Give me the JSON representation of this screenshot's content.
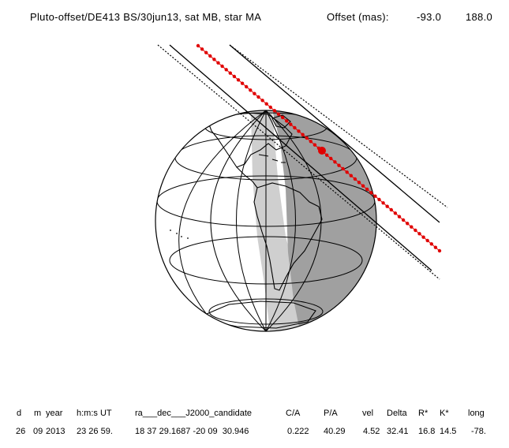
{
  "header": {
    "title": "Pluto-offset/DE413 BS/30jun13, sat MB, star MA",
    "offset_label": "Offset (mas):",
    "offset_x": "-93.0",
    "offset_y": "188.0"
  },
  "table": {
    "headers": [
      "d",
      "m",
      "year",
      "h:m:s UT",
      "ra___dec___J2000_candidate",
      "C/A",
      "P/A",
      "vel",
      "Delta",
      "R*",
      "K*",
      "long"
    ],
    "values": [
      "26",
      "09",
      "2013",
      "23 26 59.",
      "18 37 29.1687 -20 09  30.946",
      "0.222",
      "40.29",
      "4.52",
      "32.41",
      "16.8",
      "14.5",
      "-78."
    ]
  },
  "colors": {
    "shadow_track": "#e00000",
    "night_side": "#a0a0a0",
    "twilight": "#cfcfcf"
  }
}
